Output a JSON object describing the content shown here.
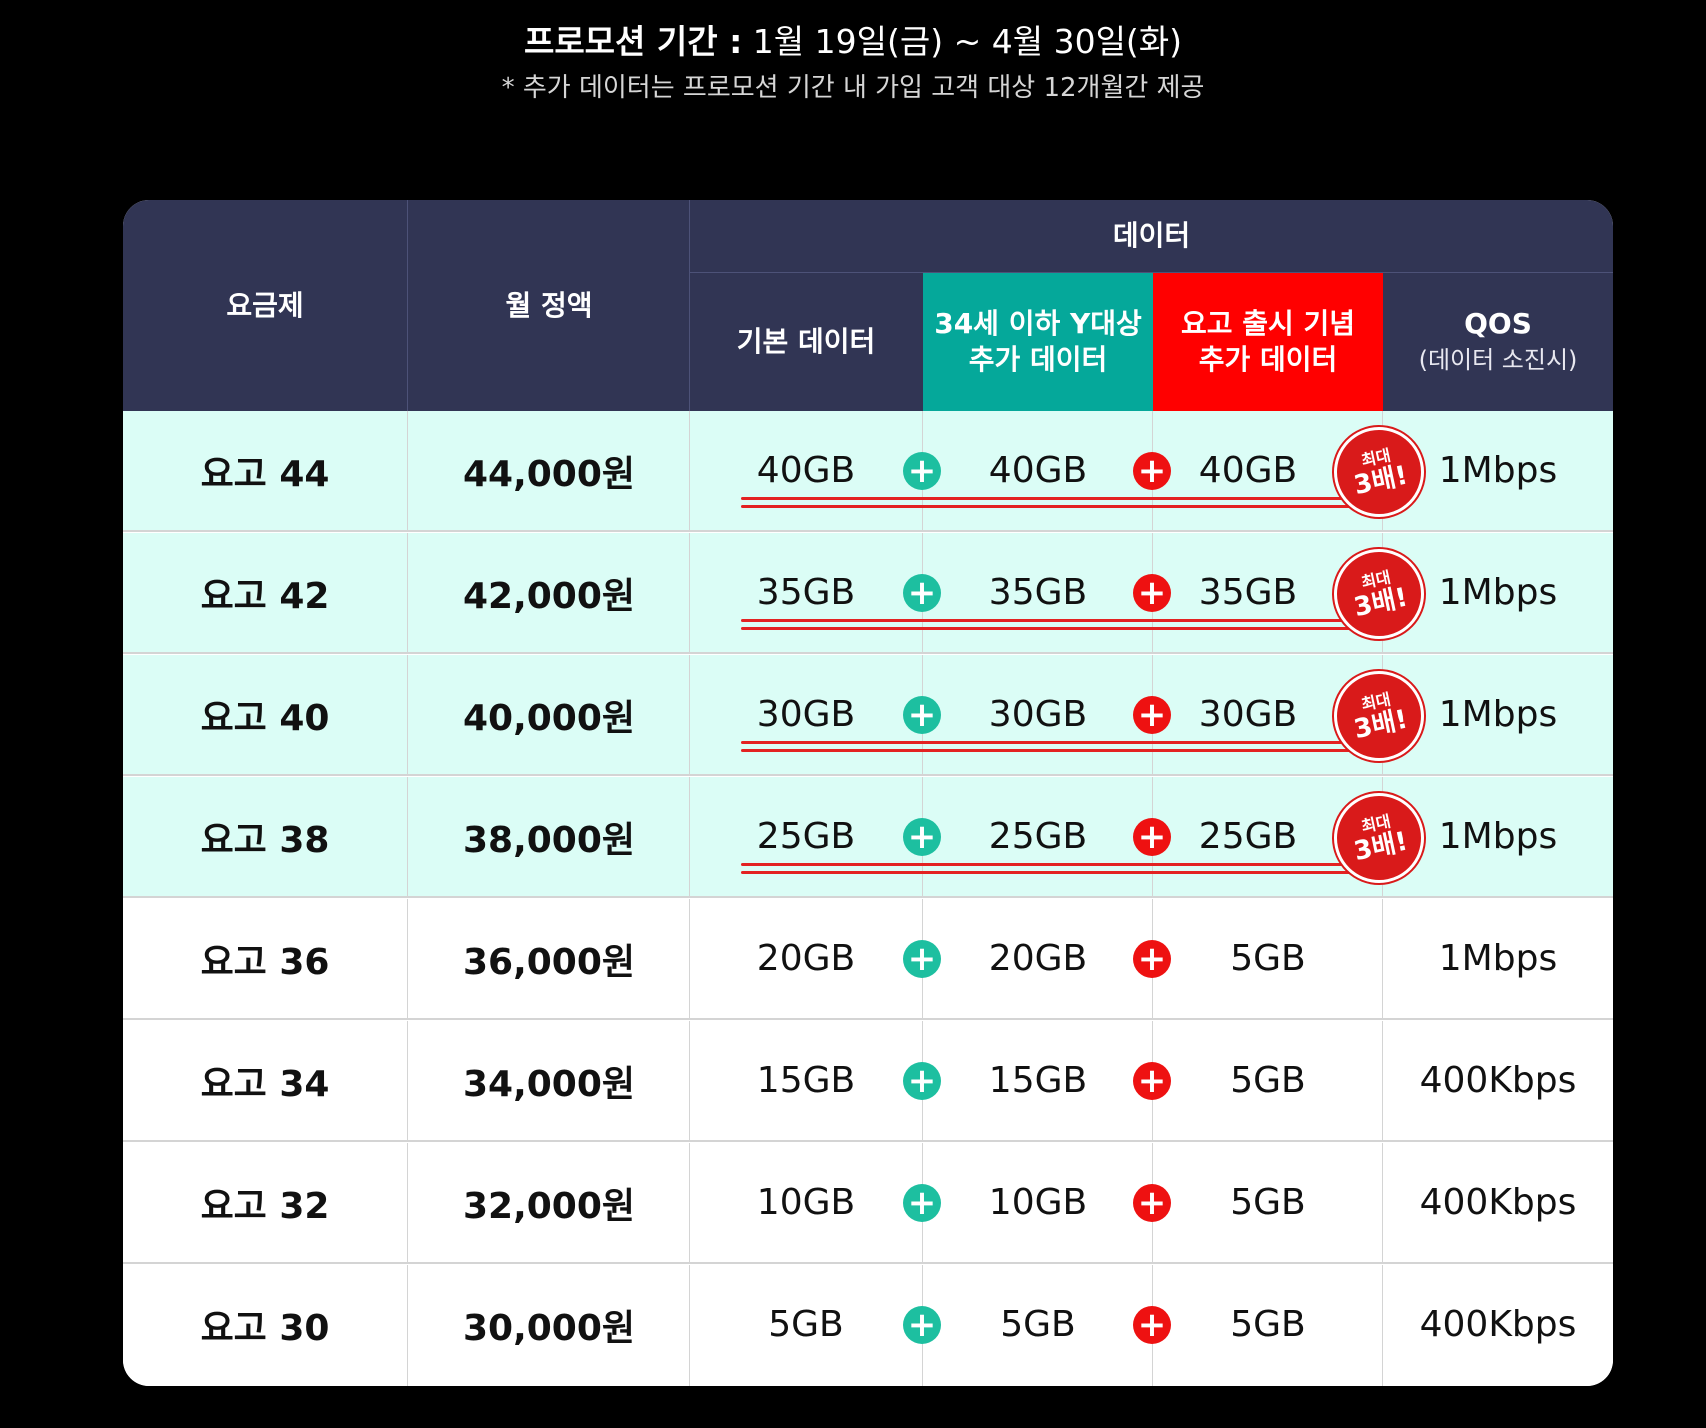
{
  "promo": {
    "period_label": "프로모션 기간 :",
    "period_value": "1월 19일(금) ~ 4월 30일(화)",
    "note": "* 추가 데이터는 프로모션 기간 내 가입 고객 대상 12개월간 제공"
  },
  "header": {
    "plan": "요금제",
    "price": "월 정액",
    "data_group": "데이터",
    "basic": "기본 데이터",
    "youth_line1": "34세 이하 Y대상",
    "youth_line2": "추가 데이터",
    "launch_line1": "요고 출시 기념",
    "launch_line2": "추가 데이터",
    "qos": "QOS",
    "qos_sub": "(데이터 소진시)"
  },
  "colors": {
    "header_bg": "#313554",
    "youth_bg": "#05a89a",
    "launch_bg": "#ff0000",
    "highlight_row": "#dbfdf6",
    "plus_green": "#1dbfa0",
    "plus_red": "#ee1111"
  },
  "badge": {
    "line1": "최대",
    "line2": "3배!"
  },
  "plus_symbol": "+",
  "rows": [
    {
      "plan": "요고 44",
      "price": "44,000원",
      "basic": "40GB",
      "youth": "40GB",
      "launch": "40GB",
      "qos": "1Mbps"
    },
    {
      "plan": "요고 42",
      "price": "42,000원",
      "basic": "35GB",
      "youth": "35GB",
      "launch": "35GB",
      "qos": "1Mbps"
    },
    {
      "plan": "요고 40",
      "price": "40,000원",
      "basic": "30GB",
      "youth": "30GB",
      "launch": "30GB",
      "qos": "1Mbps"
    },
    {
      "plan": "요고 38",
      "price": "38,000원",
      "basic": "25GB",
      "youth": "25GB",
      "launch": "25GB",
      "qos": "1Mbps"
    },
    {
      "plan": "요고 36",
      "price": "36,000원",
      "basic": "20GB",
      "youth": "20GB",
      "launch": "5GB",
      "qos": "1Mbps"
    },
    {
      "plan": "요고 34",
      "price": "34,000원",
      "basic": "15GB",
      "youth": "15GB",
      "launch": "5GB",
      "qos": "400Kbps"
    },
    {
      "plan": "요고 32",
      "price": "32,000원",
      "basic": "10GB",
      "youth": "10GB",
      "launch": "5GB",
      "qos": "400Kbps"
    },
    {
      "plan": "요고 30",
      "price": "30,000원",
      "basic": "5GB",
      "youth": "5GB",
      "launch": "5GB",
      "qos": "400Kbps"
    }
  ]
}
